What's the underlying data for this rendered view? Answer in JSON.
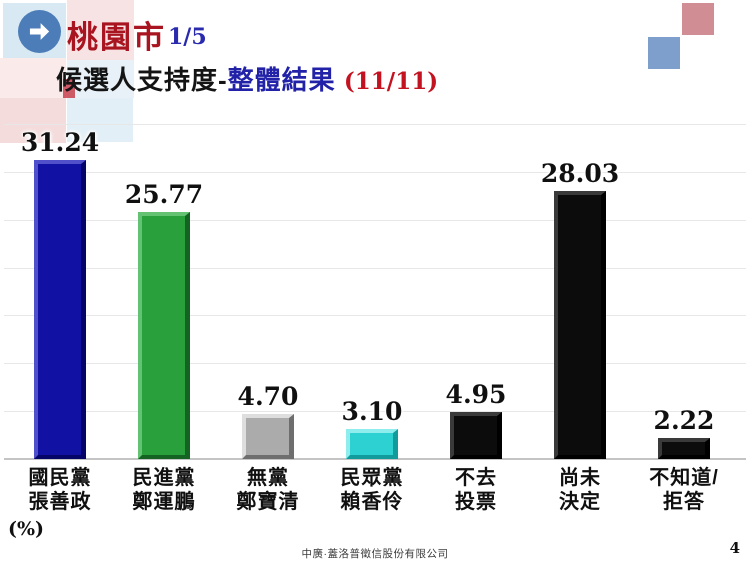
{
  "header": {
    "title": "桃園市",
    "fraction": "1/5",
    "subtitle_prefix": "候選人支持度-",
    "subtitle_highlight": "整體結果",
    "subtitle_date": "(11/11)"
  },
  "chart_data": {
    "type": "bar",
    "title": "候選人支持度-整體結果 (11/11)",
    "categories": [
      "國民黨 張善政",
      "民進黨 鄭運鵬",
      "無黨 鄭寶清",
      "民眾黨 賴香伶",
      "不去投票",
      "尚未決定",
      "不知道/拒答"
    ],
    "category_lines": [
      [
        "國民黨",
        "張善政"
      ],
      [
        "民進黨",
        "鄭運鵬"
      ],
      [
        "無黨",
        "鄭寶清"
      ],
      [
        "民眾黨",
        "賴香伶"
      ],
      [
        "不去",
        "投票"
      ],
      [
        "尚未",
        "決定"
      ],
      [
        "不知道/",
        "拒答"
      ]
    ],
    "values": [
      31.24,
      25.77,
      4.7,
      3.1,
      4.95,
      28.03,
      2.22
    ],
    "value_labels": [
      "31.24",
      "25.77",
      "4.70",
      "3.10",
      "4.95",
      "28.03",
      "2.22"
    ],
    "bar_colors": [
      {
        "face": "#1111a3",
        "light": "#5050cb",
        "dark": "#050568"
      },
      {
        "face": "#2aa03c",
        "light": "#63c373",
        "dark": "#156323"
      },
      {
        "face": "#ababab",
        "light": "#dedede",
        "dark": "#6e6e6e"
      },
      {
        "face": "#2ed1d1",
        "light": "#8feded",
        "dark": "#129b9b"
      },
      {
        "face": "#0c0c0c",
        "light": "#3a3a3a",
        "dark": "#000000"
      },
      {
        "face": "#0c0c0c",
        "light": "#3a3a3a",
        "dark": "#000000"
      },
      {
        "face": "#0c0c0c",
        "light": "#3a3a3a",
        "dark": "#000000"
      }
    ],
    "xlabel": "",
    "ylabel": "(%)",
    "ylim": [
      0,
      35
    ],
    "grid_step": 5,
    "grid": true,
    "legend": false
  },
  "colors": {
    "title": "#a8141f",
    "fraction": "#2a2aae",
    "subtitle_text": "#141414",
    "subtitle_highlight": "#2222a8",
    "subtitle_date": "#c41320",
    "grid": "#e7e7e7",
    "axis": "#c4c4c4",
    "arrow_badge": "#4c7db8"
  },
  "footer": {
    "source": "中廣·蓋洛普徵信股份有限公司",
    "page_number": "4"
  }
}
